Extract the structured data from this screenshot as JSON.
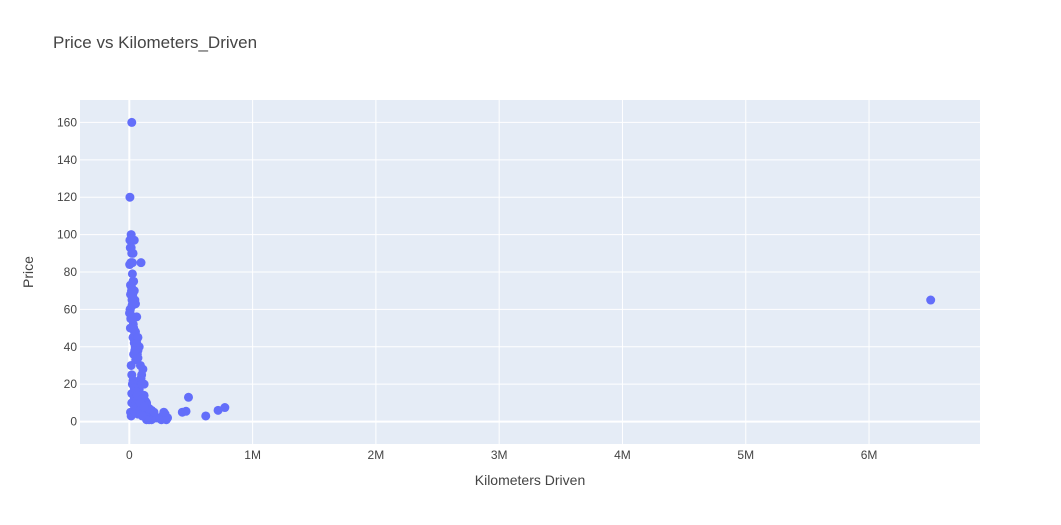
{
  "chart_data": {
    "type": "scatter",
    "title": "Price vs Kilometers_Driven",
    "xlabel": "Kilometers Driven",
    "ylabel": "Price",
    "xlim": [
      -400000,
      6900000
    ],
    "ylim": [
      -12,
      172
    ],
    "x_ticks": [
      0,
      1000000,
      2000000,
      3000000,
      4000000,
      5000000,
      6000000
    ],
    "x_tick_labels": [
      "0",
      "1M",
      "2M",
      "3M",
      "4M",
      "5M",
      "6M"
    ],
    "y_ticks": [
      0,
      20,
      40,
      60,
      80,
      100,
      120,
      140,
      160
    ],
    "y_tick_labels": [
      "0",
      "20",
      "40",
      "60",
      "80",
      "100",
      "120",
      "140",
      "160"
    ],
    "grid": true,
    "marker_color": "#636efa",
    "plot_background": "#e5ecf6",
    "grid_color": "#ffffff",
    "series": [
      {
        "x": [
          20000,
          5000,
          40000,
          15000,
          8000,
          30000,
          12000,
          3000,
          25000,
          35000,
          10000,
          18000,
          28000,
          45000,
          22000,
          6000,
          2000,
          14000,
          32000,
          9000,
          50000,
          60000,
          42000,
          38000,
          55000,
          48000,
          70000,
          65000,
          58000,
          52000,
          90000,
          110000,
          100000,
          95000,
          85000,
          120000,
          60000,
          75000,
          80000,
          30000,
          40000,
          50000,
          45000,
          35000,
          70000,
          20000,
          60000,
          80000,
          100000,
          130000,
          140000,
          120000,
          90000,
          70000,
          150000,
          10000,
          30000,
          50000,
          70000,
          90000,
          110000,
          130000,
          150000,
          170000,
          190000,
          200000,
          210000,
          220000,
          230000,
          240000,
          250000,
          260000,
          180000,
          160000,
          140000,
          20000,
          40000,
          60000,
          80000,
          100000,
          120000,
          140000,
          160000,
          180000,
          200000,
          15000,
          25000,
          35000,
          45000,
          55000,
          65000,
          75000,
          85000,
          95000,
          105000,
          290000,
          280000,
          270000,
          300000,
          310000,
          280000,
          480000,
          430000,
          460000,
          620000,
          720000,
          775000,
          6500000,
          25000,
          5000,
          15000,
          20000,
          95000,
          18000,
          22000,
          40000,
          10000,
          30000,
          8000,
          12000,
          6000,
          26000,
          35000,
          50000,
          70000,
          60000,
          80000,
          45000,
          15000,
          20000,
          30000,
          25000,
          40000,
          55000,
          65000,
          100000,
          90000,
          120000
        ],
        "y": [
          160,
          120,
          97,
          100,
          93,
          90,
          85,
          84,
          79,
          75,
          73,
          70,
          68,
          65,
          62,
          60,
          58,
          55,
          52,
          50,
          63,
          56,
          48,
          45,
          42,
          40,
          38,
          36,
          35,
          33,
          30,
          28,
          25,
          23,
          22,
          20,
          19,
          18,
          17,
          45,
          42,
          40,
          38,
          36,
          34,
          15,
          14,
          13,
          12,
          11,
          10,
          9,
          8,
          7,
          6,
          5,
          5,
          5,
          4,
          4,
          4,
          3,
          3,
          3,
          3,
          2,
          2,
          2,
          2,
          2,
          2,
          1,
          1,
          1,
          1,
          10,
          12,
          15,
          18,
          20,
          14,
          9,
          7,
          6,
          5,
          3,
          4,
          6,
          8,
          10,
          12,
          8,
          6,
          4,
          3,
          4,
          3,
          3,
          1,
          2,
          5,
          13,
          5,
          5.5,
          3,
          6,
          7.5,
          65,
          85,
          97,
          93,
          90,
          85,
          72,
          65,
          70,
          68,
          75,
          60,
          55,
          58,
          63,
          50,
          48,
          45,
          42,
          40,
          38,
          30,
          25,
          22,
          20,
          18,
          16,
          14,
          12,
          10,
          8
        ]
      }
    ]
  }
}
